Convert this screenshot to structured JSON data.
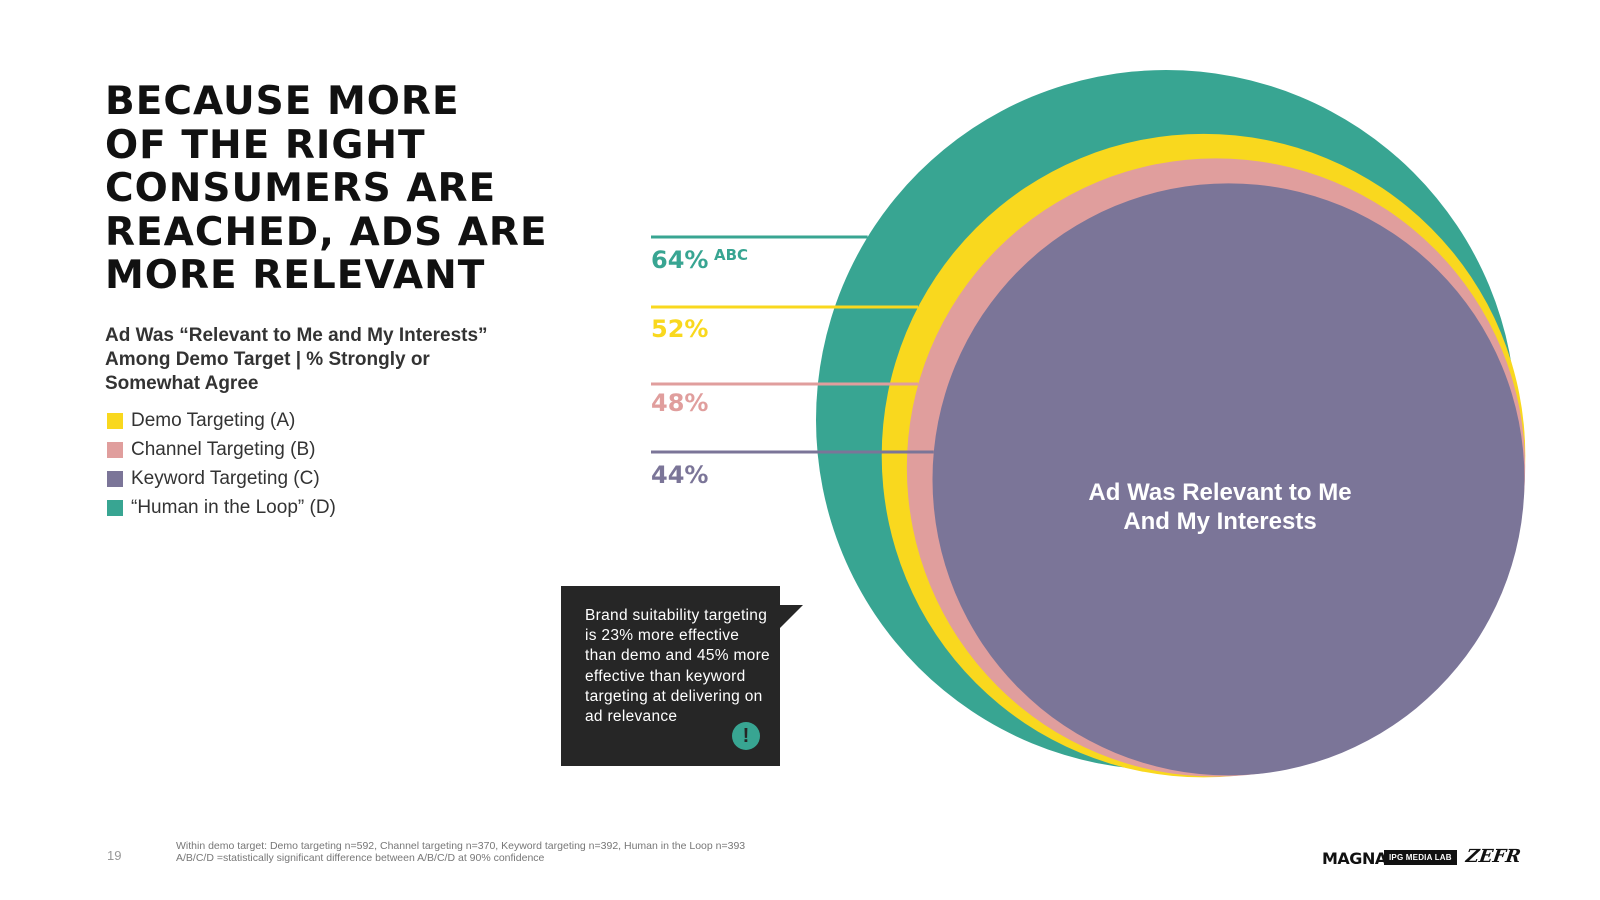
{
  "title_lines": [
    "BECAUSE MORE",
    "OF THE RIGHT",
    "CONSUMERS ARE",
    "REACHED, ADS ARE",
    "MORE RELEVANT"
  ],
  "subtitle": "Ad Was “Relevant to Me and My Interests” Among Demo Target | % Strongly or Somewhat Agree",
  "legend": [
    {
      "label": "Demo Targeting (A)",
      "color": "#f9d81e"
    },
    {
      "label": "Channel Targeting (B)",
      "color": "#e09e9d"
    },
    {
      "label": "Keyword Targeting (C)",
      "color": "#7b7598"
    },
    {
      "label": "“Human in the Loop” (D)",
      "color": "#38a592"
    }
  ],
  "chart_data": {
    "type": "nested-circles",
    "center_label_lines": [
      "Ad Was Relevant to Me",
      "And My Interests"
    ],
    "series": [
      {
        "name": "“Human in the Loop” (D)",
        "value": 64,
        "label": "64%",
        "sig": "ABC",
        "color": "#38a592"
      },
      {
        "name": "Demo Targeting (A)",
        "value": 52,
        "label": "52%",
        "sig": "",
        "color": "#f9d81e"
      },
      {
        "name": "Channel Targeting (B)",
        "value": 48,
        "label": "48%",
        "sig": "",
        "color": "#e09e9d"
      },
      {
        "name": "Keyword Targeting (C)",
        "value": 44,
        "label": "44%",
        "sig": "",
        "color": "#7b7598"
      }
    ]
  },
  "callout": {
    "text": "Brand suitability targeting is 23% more effective than demo and 45% more effective than keyword targeting at delivering on ad relevance",
    "badge": "!",
    "badge_icon": "exclamation-icon"
  },
  "page_number": "19",
  "footnote": {
    "line1": "Within demo target: Demo targeting n=592, Channel targeting n=370, Keyword targeting n=392, Human in the Loop n=393",
    "line2": "A/B/C/D =statistically significant difference between A/B/C/D at 90% confidence"
  },
  "logos": {
    "magna": "MAGNA",
    "ipg": "IPG MEDIA LAB",
    "zefr": "ZEFR"
  }
}
